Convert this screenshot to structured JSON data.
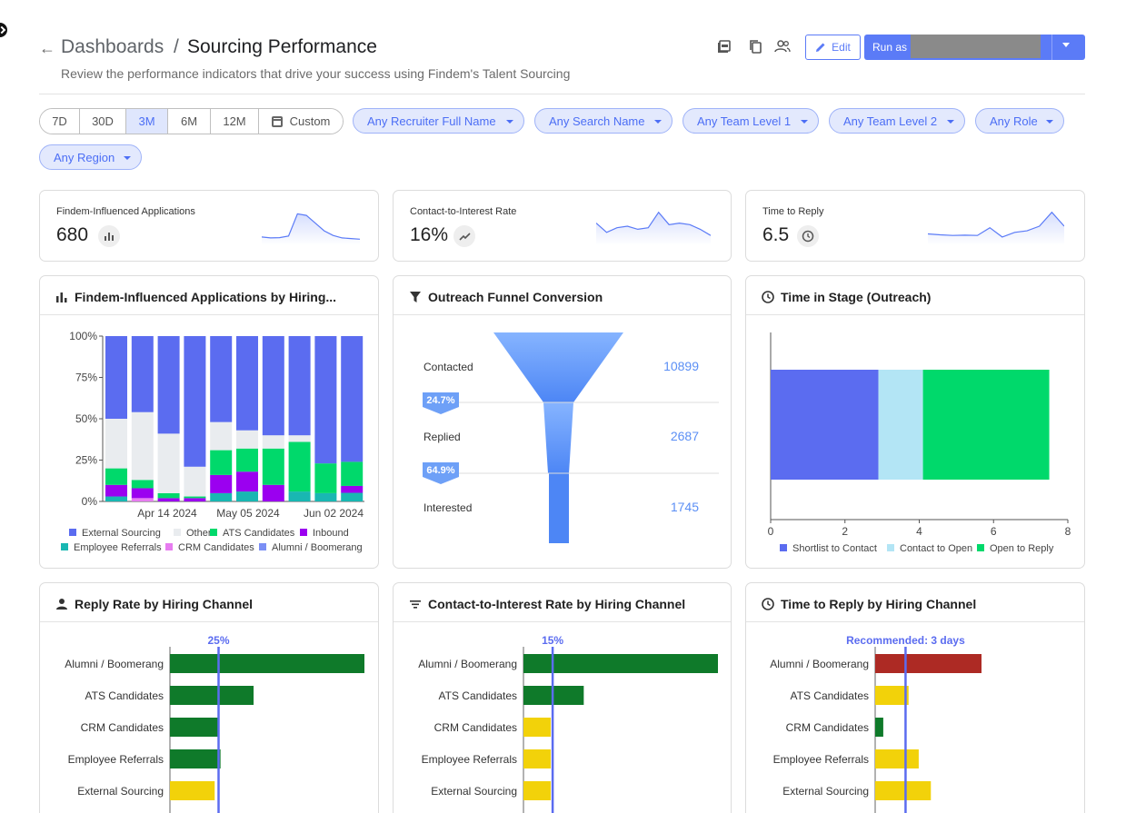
{
  "header": {
    "back_label": "←",
    "breadcrumb": "Dashboards",
    "separator": "/",
    "title": "Sourcing Performance",
    "subtitle": "Review the performance indicators that drive your success using Findem's Talent Sourcing",
    "edit_label": "Edit",
    "run_label": "Run as E",
    "icons": [
      "pdf-icon",
      "copy-icon",
      "people-icon",
      "pencil-icon",
      "chevron-down-icon"
    ]
  },
  "time_ranges": [
    {
      "label": "7D",
      "active": false
    },
    {
      "label": "30D",
      "active": false
    },
    {
      "label": "3M",
      "active": true
    },
    {
      "label": "6M",
      "active": false
    },
    {
      "label": "12M",
      "active": false
    },
    {
      "label": "Custom",
      "active": false
    }
  ],
  "filters": [
    "Any Recruiter Full Name",
    "Any Search Name",
    "Any Team Level 1",
    "Any Team Level 2",
    "Any Role",
    "Any Region"
  ],
  "kpis": [
    {
      "label": "Findem-Influenced Applications",
      "value": "680",
      "icon": "bar-chart-icon",
      "trend": [
        0.15,
        0.12,
        0.13,
        0.18,
        0.9,
        0.85,
        0.6,
        0.35,
        0.2,
        0.12,
        0.1,
        0.08
      ]
    },
    {
      "label": "Contact-to-Interest Rate",
      "value": "16%",
      "icon": "trend-line-icon",
      "trend": [
        0.6,
        0.3,
        0.45,
        0.5,
        0.4,
        0.45,
        0.95,
        0.55,
        0.6,
        0.55,
        0.4,
        0.2
      ]
    },
    {
      "label": "Time to Reply",
      "value": "6.5",
      "icon": "clock-icon",
      "trend": [
        0.25,
        0.22,
        0.2,
        0.21,
        0.2,
        0.45,
        0.15,
        0.3,
        0.35,
        0.5,
        0.95,
        0.5
      ]
    }
  ],
  "panels": {
    "applications": {
      "title": "Findem-Influenced Applications by Hiring...",
      "icon": "bar-chart-icon"
    },
    "funnel": {
      "title": "Outreach Funnel Conversion",
      "icon": "filter-icon"
    },
    "stage": {
      "title": "Time in Stage (Outreach)",
      "icon": "clock-icon"
    },
    "reply_rate": {
      "title": "Reply Rate by Hiring Channel",
      "icon": "person-icon"
    },
    "interest_rate": {
      "title": "Contact-to-Interest Rate by Hiring Channel",
      "icon": "filter-lines-icon"
    },
    "time_reply": {
      "title": "Time to Reply by Hiring Channel",
      "icon": "clock-icon"
    }
  },
  "colors": {
    "accent": "#5b7bf7",
    "external": "#5b6cf0",
    "other": "#e9ecef",
    "ats": "#00d96b",
    "inbound": "#9b00f0",
    "employee": "#19b7b2",
    "crm": "#e77cf0",
    "alumni": "#7b8ff5",
    "good": "#0f7a2a",
    "warn": "#f2d20a",
    "bad": "#ad2a24"
  },
  "chart_data": [
    {
      "type": "bar",
      "stacked": true,
      "normalized": true,
      "x_ticks": [
        "Apr 14 2024",
        "May 05 2024",
        "Jun 02 2024"
      ],
      "y_ticks": [
        "0%",
        "25%",
        "50%",
        "75%",
        "100%"
      ],
      "legend": [
        "External Sourcing",
        "Other",
        "ATS Candidates",
        "Inbound",
        "Employee Referrals",
        "CRM Candidates",
        "Alumni / Boomerang"
      ],
      "series": [
        {
          "name": "Employee Referrals",
          "color": "#19b7b2",
          "values": [
            3,
            0,
            0,
            0,
            5,
            6,
            0,
            6,
            5,
            5
          ]
        },
        {
          "name": "CRM Candidates",
          "color": "#e77cf0",
          "values": [
            0,
            2,
            0,
            0,
            0,
            0,
            0,
            0,
            0,
            0
          ]
        },
        {
          "name": "Inbound",
          "color": "#9b00f0",
          "values": [
            7,
            6,
            2,
            2,
            11,
            12,
            10,
            0,
            0,
            4
          ]
        },
        {
          "name": "ATS Candidates",
          "color": "#00d96b",
          "values": [
            10,
            5,
            3,
            1,
            15,
            14,
            22,
            30,
            18,
            14
          ]
        },
        {
          "name": "Other",
          "color": "#e9ecef",
          "values": [
            30,
            41,
            36,
            18,
            17,
            11,
            8,
            4,
            0,
            0
          ]
        },
        {
          "name": "External Sourcing",
          "color": "#5b6cf0",
          "values": [
            50,
            46,
            59,
            79,
            52,
            57,
            60,
            60,
            77,
            73
          ]
        }
      ]
    },
    {
      "type": "funnel",
      "stages": [
        {
          "label": "Contacted",
          "value": "10899"
        },
        {
          "label": "Replied",
          "value": "2687"
        },
        {
          "label": "Interested",
          "value": "1745"
        }
      ],
      "conversions": [
        "24.7%",
        "64.9%"
      ]
    },
    {
      "type": "bar",
      "orientation": "horizontal",
      "stacked": true,
      "x_ticks": [
        "0",
        "2",
        "4",
        "6",
        "8"
      ],
      "xlim": [
        0,
        8
      ],
      "segments": [
        {
          "name": "Shortlist to Contact",
          "color": "#5b6cf0",
          "value": 2.9
        },
        {
          "name": "Contact to Open",
          "color": "#b3e5f5",
          "value": 1.2
        },
        {
          "name": "Open to Reply",
          "color": "#00d96b",
          "value": 3.4
        }
      ]
    },
    {
      "type": "bar",
      "orientation": "horizontal",
      "reference_label": "25%",
      "reference": 25,
      "max": 100,
      "categories": [
        "Alumni / Boomerang",
        "ATS Candidates",
        "CRM Candidates",
        "Employee Referrals",
        "External Sourcing"
      ],
      "values": [
        100,
        43,
        25,
        26,
        23
      ],
      "colors": [
        "#0f7a2a",
        "#0f7a2a",
        "#0f7a2a",
        "#0f7a2a",
        "#f2d20a"
      ]
    },
    {
      "type": "bar",
      "orientation": "horizontal",
      "reference_label": "15%",
      "reference": 15,
      "max": 100,
      "categories": [
        "Alumni / Boomerang",
        "ATS Candidates",
        "CRM Candidates",
        "Employee Referrals",
        "External Sourcing"
      ],
      "values": [
        100,
        31,
        14,
        14,
        14
      ],
      "colors": [
        "#0f7a2a",
        "#0f7a2a",
        "#f2d20a",
        "#f2d20a",
        "#f2d20a"
      ]
    },
    {
      "type": "bar",
      "orientation": "horizontal",
      "reference_label": "Recommended: 3 days",
      "reference": 3,
      "max": 10.5,
      "categories": [
        "Alumni / Boomerang",
        "ATS Candidates",
        "CRM Candidates",
        "Employee Referrals",
        "External Sourcing"
      ],
      "values": [
        10.5,
        3.3,
        0.8,
        4.3,
        5.5
      ],
      "colors": [
        "#ad2a24",
        "#f2d20a",
        "#0f7a2a",
        "#f2d20a",
        "#f2d20a"
      ]
    }
  ]
}
